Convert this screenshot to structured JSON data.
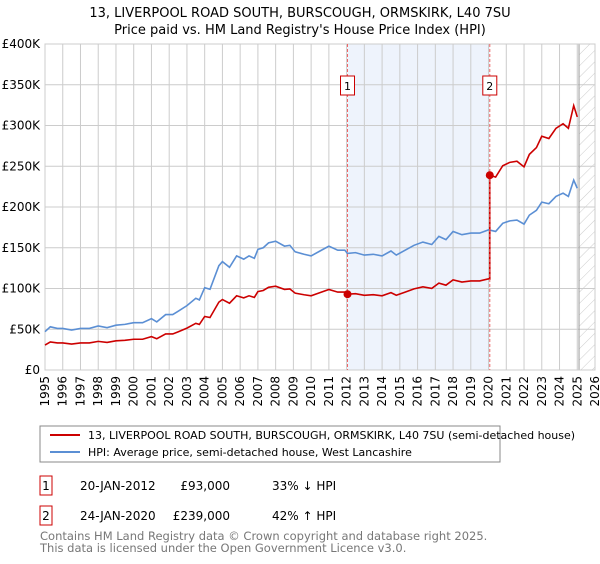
{
  "chart_data": {
    "type": "line",
    "title": "13, LIVERPOOL ROAD SOUTH, BURSCOUGH, ORMSKIRK, L40 7SU",
    "subtitle": "Price paid vs. HM Land Registry's House Price Index (HPI)",
    "xlim": [
      1995,
      2026
    ],
    "ylim": [
      0,
      400000
    ],
    "x_ticks": [
      "1995",
      "1996",
      "1997",
      "1998",
      "1999",
      "2000",
      "2001",
      "2002",
      "2003",
      "2004",
      "2005",
      "2006",
      "2007",
      "2008",
      "2009",
      "2010",
      "2011",
      "2012",
      "2013",
      "2014",
      "2015",
      "2016",
      "2017",
      "2018",
      "2019",
      "2020",
      "2021",
      "2022",
      "2023",
      "2024",
      "2025",
      "2026"
    ],
    "y_ticks": [
      {
        "value": 0,
        "label": "£0"
      },
      {
        "value": 50000,
        "label": "£50K"
      },
      {
        "value": 100000,
        "label": "£100K"
      },
      {
        "value": 150000,
        "label": "£150K"
      },
      {
        "value": 200000,
        "label": "£200K"
      },
      {
        "value": 250000,
        "label": "£250K"
      },
      {
        "value": 300000,
        "label": "£300K"
      },
      {
        "value": 350000,
        "label": "£350K"
      },
      {
        "value": 400000,
        "label": "£400K"
      }
    ],
    "grid": true,
    "forecast_hatch_from": 2025.1,
    "series": [
      {
        "name": "13, LIVERPOOL ROAD SOUTH, BURSCOUGH, ORMSKIRK, L40 7SU (semi-detached house)",
        "color": "#cc0000",
        "derived_from_hpi_and_sales": true
      },
      {
        "name": "HPI: Average price, semi-detached house, West Lancashire",
        "color": "#5b8fd4",
        "x": [
          1995.0,
          1995.3,
          1995.7,
          1996.0,
          1996.5,
          1997.0,
          1997.5,
          1998.0,
          1998.5,
          1999.0,
          1999.5,
          2000.0,
          2000.5,
          2001.0,
          2001.3,
          2001.8,
          2002.2,
          2002.5,
          2003.0,
          2003.5,
          2003.7,
          2004.0,
          2004.3,
          2004.8,
          2005.0,
          2005.4,
          2005.8,
          2006.2,
          2006.5,
          2006.8,
          2007.0,
          2007.3,
          2007.6,
          2008.0,
          2008.5,
          2008.8,
          2009.1,
          2009.6,
          2010.0,
          2010.5,
          2011.0,
          2011.5,
          2011.9,
          2012.05,
          2012.5,
          2013.0,
          2013.5,
          2014.0,
          2014.5,
          2014.8,
          2015.3,
          2015.8,
          2016.3,
          2016.8,
          2017.2,
          2017.6,
          2018.0,
          2018.5,
          2019.0,
          2019.5,
          2020.0,
          2020.4,
          2020.8,
          2021.2,
          2021.6,
          2022.0,
          2022.3,
          2022.7,
          2023.0,
          2023.4,
          2023.8,
          2024.2,
          2024.5,
          2024.8,
          2025.0
        ],
        "y": [
          47000,
          53000,
          51000,
          51000,
          49000,
          51000,
          51000,
          54000,
          52000,
          55000,
          56000,
          58000,
          58000,
          63000,
          59000,
          68000,
          68000,
          72000,
          79000,
          88000,
          86000,
          101000,
          99000,
          128000,
          133000,
          126000,
          140000,
          136000,
          140000,
          137000,
          148000,
          150000,
          156000,
          158000,
          152000,
          153000,
          145000,
          142000,
          140000,
          146000,
          152000,
          147000,
          147000,
          143000,
          144000,
          141000,
          142000,
          140000,
          146000,
          141000,
          147000,
          153000,
          157000,
          154000,
          164000,
          160000,
          170000,
          166000,
          168000,
          168000,
          172000,
          170000,
          180000,
          183000,
          184000,
          179000,
          190000,
          196000,
          206000,
          204000,
          213000,
          217000,
          213000,
          233000,
          223000
        ]
      }
    ],
    "sales": [
      {
        "id": "1",
        "x": 2012.05,
        "date": "20-JAN-2012",
        "price": 93000,
        "price_label": "£93,000",
        "hpi_change": "33% ↓ HPI"
      },
      {
        "id": "2",
        "x": 2020.07,
        "date": "24-JAN-2020",
        "price": 239000,
        "price_label": "£239,000",
        "hpi_change": "42% ↑ HPI"
      }
    ]
  },
  "legend": {
    "property": "13, LIVERPOOL ROAD SOUTH, BURSCOUGH, ORMSKIRK, L40 7SU (semi-detached house)",
    "hpi": "HPI: Average price, semi-detached house, West Lancashire"
  },
  "footer": {
    "line1": "Contains HM Land Registry data © Crown copyright and database right 2025.",
    "line2": "This data is licensed under the Open Government Licence v3.0."
  }
}
